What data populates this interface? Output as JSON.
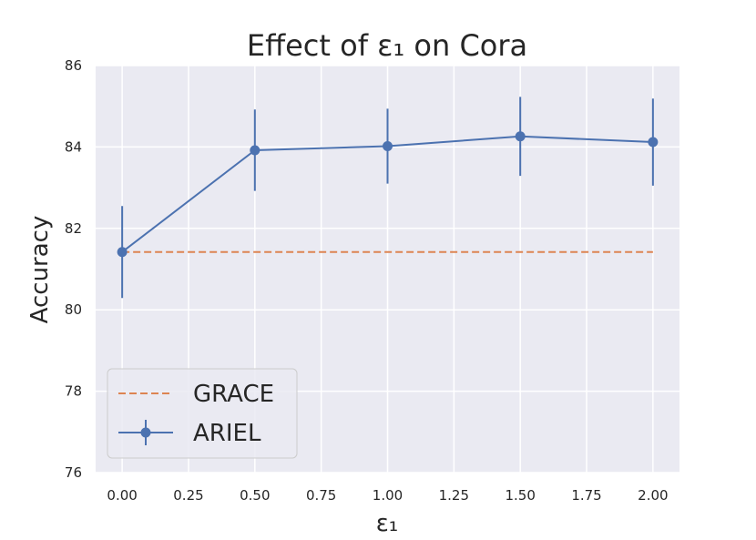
{
  "chart_data": {
    "type": "line",
    "title": "Effect of ε₁ on Cora",
    "xlabel": "ε₁",
    "ylabel": "Accuracy",
    "xlim": [
      -0.1,
      2.1
    ],
    "ylim": [
      76,
      86
    ],
    "xticks": [
      "0.00",
      "0.25",
      "0.50",
      "0.75",
      "1.00",
      "1.25",
      "1.50",
      "1.75",
      "2.00"
    ],
    "yticks": [
      "76",
      "78",
      "80",
      "82",
      "84",
      "86"
    ],
    "grid": true,
    "legend_position": "lower-left",
    "series": [
      {
        "name": "GRACE",
        "style": "dashed",
        "color": "#dd8452",
        "x": [
          0.0,
          2.0
        ],
        "values": [
          81.42,
          81.42
        ]
      },
      {
        "name": "ARIEL",
        "style": "solid-marker-errorbar",
        "color": "#4c72b0",
        "x": [
          0.0,
          0.5,
          1.0,
          1.5,
          2.0
        ],
        "values": [
          81.42,
          83.92,
          84.02,
          84.26,
          84.12
        ],
        "error": [
          1.13,
          1.0,
          0.92,
          0.97,
          1.07
        ]
      }
    ]
  }
}
